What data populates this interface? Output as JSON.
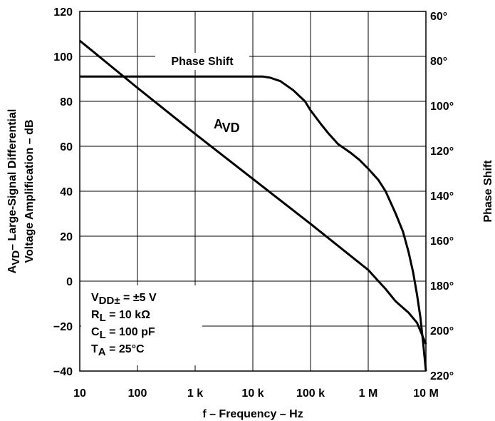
{
  "chart_data": {
    "type": "line",
    "xscale": "log",
    "x_ticks": [
      10,
      100,
      1000,
      10000,
      100000,
      1000000,
      10000000
    ],
    "x_tick_labels": [
      "10",
      "100",
      "1 k",
      "10 k",
      "100 k",
      "1 M",
      "10 M"
    ],
    "xlim": [
      10,
      10000000
    ],
    "xlabel": "f – Frequency – Hz",
    "ylim": [
      -40,
      120
    ],
    "y_ticks": [
      120,
      100,
      80,
      60,
      40,
      20,
      0,
      -20,
      -40
    ],
    "y_tick_labels": [
      "120",
      "100",
      "80",
      "60",
      "40",
      "20",
      "0",
      "−20",
      "−40"
    ],
    "ylabel_line1": "Voltage Amplification – dB",
    "ylabel_main": "A",
    "ylabel_sub": "VD",
    "ylabel_rest": "– Large-Signal Differential",
    "y2lim": [
      60,
      220
    ],
    "y2_ticks": [
      60,
      80,
      100,
      120,
      140,
      160,
      180,
      200,
      220
    ],
    "y2_tick_labels": [
      "60°",
      "80°",
      "100°",
      "120°",
      "140°",
      "160°",
      "180°",
      "200°",
      "220°"
    ],
    "y2label": "Phase Shift",
    "y2_inverted": true,
    "grid": true,
    "series": [
      {
        "name_main": "A",
        "name_sub": "VD",
        "axis": "left",
        "x": [
          10,
          100,
          1000,
          10000,
          100000,
          1000000,
          1500000,
          2000000,
          3000000,
          5000000,
          7000000,
          10000000
        ],
        "y": [
          107,
          86,
          65.5,
          45.5,
          25.5,
          5,
          0,
          -3.5,
          -9,
          -14,
          -18.5,
          -28
        ]
      },
      {
        "name": "Phase Shift",
        "axis": "right",
        "x": [
          10,
          1000,
          10000,
          15000,
          20000,
          30000,
          50000,
          80000,
          100000,
          150000,
          200000,
          300000,
          500000,
          700000,
          1000000,
          1500000,
          2000000,
          3000000,
          4000000,
          5000000,
          6000000,
          7000000,
          8000000,
          9000000,
          10000000
        ],
        "y": [
          89,
          89,
          89,
          89,
          89.5,
          91,
          95,
          100,
          104,
          110,
          114,
          119,
          123,
          126,
          130,
          135,
          140,
          150,
          158,
          167,
          176,
          186,
          196,
          208,
          220
        ]
      }
    ],
    "annotations": [
      {
        "kind": "sub",
        "main": "V",
        "sub": "DD±",
        "rest": " = ±5 V"
      },
      {
        "kind": "sub",
        "main": "R",
        "sub": "L",
        "rest": " = 10 kΩ"
      },
      {
        "kind": "sub",
        "main": "C",
        "sub": "L",
        "rest": " = 100 pF"
      },
      {
        "kind": "sub",
        "main": "T",
        "sub": "A",
        "rest": " = 25°C"
      }
    ]
  }
}
